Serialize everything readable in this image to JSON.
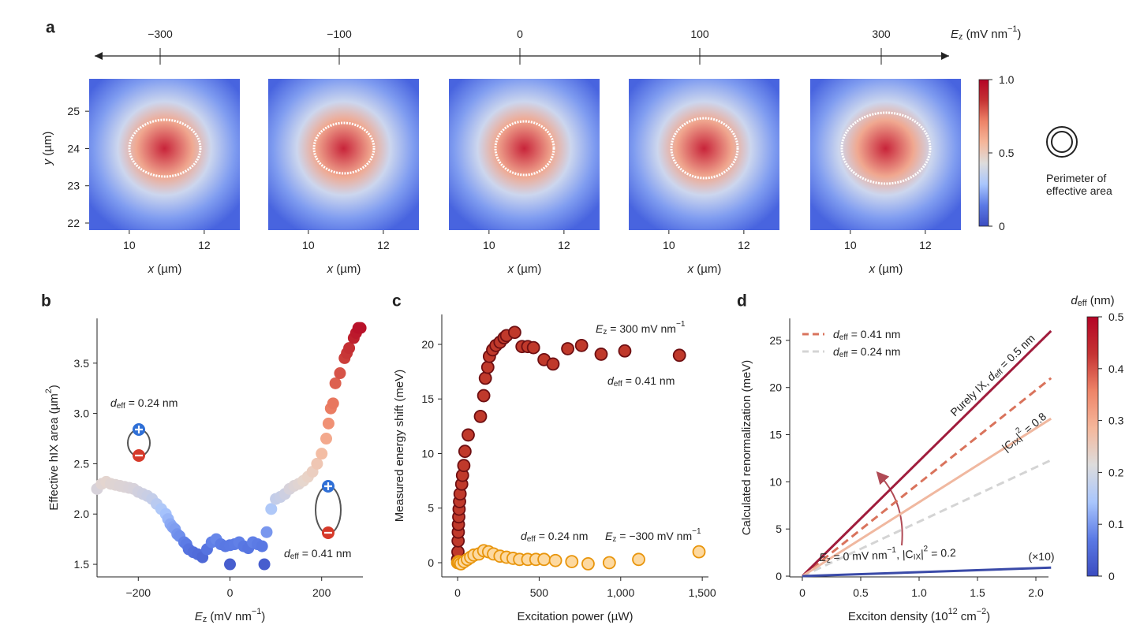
{
  "chart_data": [
    {
      "type": "heatmap",
      "panel": "a",
      "categories": [
        {
          "value": -300,
          "label": "−300"
        },
        {
          "value": -100,
          "label": "−100"
        },
        0,
        100,
        300
      ],
      "category_axis_label": [
        "E",
        "z",
        " (mV nm",
        "−1",
        ")"
      ],
      "xlabel": [
        "x",
        " (µm)"
      ],
      "ylabel": [
        "y",
        " (µm)"
      ],
      "xlim": [
        8.93,
        12.95
      ],
      "ylim": [
        21.81,
        25.87
      ],
      "xticks": [
        10,
        12
      ],
      "yticks": [
        22,
        23,
        24,
        25
      ],
      "colorbar": {
        "lim": [
          0,
          1
        ],
        "ticks": [
          0,
          0.5,
          {
            "value": 1,
            "label": "1.0"
          }
        ],
        "colormap": [
          "#3b4cc0",
          "#5b7ae5",
          "#a9c6fd",
          "#dddcdc",
          "#f5b79b",
          "#ee8468",
          "#c53334",
          "#b40426"
        ]
      },
      "legend_label": [
        "Perimeter of",
        "effective area"
      ]
    },
    {
      "type": "scatter",
      "panel": "b",
      "xlabel": [
        "E",
        "z",
        " (mV nm",
        "−1",
        ")"
      ],
      "ylabel": [
        "Effective hIX area (µm",
        "2",
        ")"
      ],
      "xlim": [
        -290,
        290
      ],
      "ylim": [
        1.375,
        3.945
      ],
      "xticks": [
        {
          "value": -200,
          "label": "−200"
        },
        0,
        200
      ],
      "yticks": [
        1.5,
        {
          "value": 2,
          "label": "2.0"
        },
        2.5,
        {
          "value": 3,
          "label": "3.0"
        },
        3.5
      ],
      "colormap": [
        "#3b4cc0",
        "#5b7ae5",
        "#a9c6fd",
        "#e8d6cc",
        "#f5b79b",
        "#ee8468",
        "#dd6150",
        "#c53334",
        "#b40426"
      ],
      "x": [
        -290,
        -280,
        -270,
        -260,
        -250,
        -240,
        -230,
        -220,
        -210,
        -200,
        -190,
        -180,
        -170,
        -160,
        -150,
        -140,
        -135,
        -130,
        -125,
        -120,
        -115,
        -110,
        -100,
        -95,
        -90,
        -80,
        -70,
        -60,
        -50,
        -40,
        -30,
        -20,
        -10,
        0,
        10,
        20,
        30,
        40,
        50,
        60,
        70,
        80,
        90,
        100,
        110,
        120,
        130,
        140,
        150,
        160,
        170,
        180,
        190,
        200,
        210,
        215,
        220,
        225,
        230,
        240,
        250,
        255,
        260,
        270,
        275,
        280,
        285,
        0,
        75
      ],
      "values": [
        2.25,
        2.3,
        2.32,
        2.3,
        2.29,
        2.28,
        2.27,
        2.26,
        2.25,
        2.22,
        2.2,
        2.18,
        2.15,
        2.1,
        2.05,
        2.0,
        1.95,
        1.9,
        1.87,
        1.85,
        1.8,
        1.78,
        1.72,
        1.7,
        1.65,
        1.62,
        1.6,
        1.57,
        1.65,
        1.72,
        1.75,
        1.7,
        1.68,
        1.69,
        1.7,
        1.72,
        1.68,
        1.66,
        1.72,
        1.7,
        1.68,
        1.82,
        2.05,
        2.15,
        2.17,
        2.2,
        2.25,
        2.28,
        2.3,
        2.33,
        2.37,
        2.42,
        2.5,
        2.6,
        2.75,
        2.9,
        3.05,
        3.1,
        3.3,
        3.4,
        3.55,
        3.6,
        3.65,
        3.75,
        3.8,
        3.85,
        3.85,
        1.5,
        1.5
      ],
      "annotations": [
        [
          "d",
          "eff",
          " = 0.24 nm"
        ],
        [
          "d",
          "eff",
          " = 0.41 nm"
        ]
      ]
    },
    {
      "type": "scatter",
      "panel": "c",
      "xlabel": [
        "Excitation power (µW)"
      ],
      "ylabel": [
        "Measured energy shift (meV)"
      ],
      "xlim": [
        -97,
        1538
      ],
      "ylim": [
        -1.3,
        22.74
      ],
      "xticks": [
        0,
        500,
        {
          "value": 1000,
          "label": "1,000"
        },
        {
          "value": 1500,
          "label": "1,500"
        }
      ],
      "yticks": [
        0,
        5,
        10,
        15,
        20
      ],
      "series": [
        {
          "color": "#c0392b",
          "edge": "#6e0f12",
          "x": [
            0,
            2,
            3,
            4,
            5,
            7,
            9,
            12,
            15,
            25,
            30,
            38,
            45,
            65,
            140,
            160,
            170,
            185,
            195,
            215,
            235,
            260,
            285,
            300,
            350,
            395,
            430,
            465,
            530,
            585,
            675,
            760,
            880,
            1025,
            1360
          ],
          "values": [
            0.3,
            1,
            2,
            2.8,
            3.5,
            4.2,
            4.9,
            5.6,
            6.3,
            7.2,
            8.0,
            8.9,
            10.2,
            11.7,
            13.4,
            15.3,
            16.9,
            17.9,
            18.9,
            19.5,
            19.9,
            20.2,
            20.6,
            20.8,
            21.1,
            19.8,
            19.8,
            19.7,
            18.6,
            18.2,
            19.6,
            19.9,
            19.1,
            19.4,
            19.0
          ]
        },
        {
          "color": "#fdd9a0",
          "edge": "#e8950c",
          "x": [
            0,
            5,
            10,
            20,
            40,
            60,
            80,
            100,
            130,
            160,
            190,
            220,
            260,
            300,
            340,
            380,
            430,
            480,
            530,
            600,
            700,
            800,
            930,
            1110,
            1480
          ],
          "values": [
            0,
            0.1,
            0,
            -0.1,
            0.1,
            0.3,
            0.5,
            0.7,
            0.8,
            1.1,
            1.0,
            0.8,
            0.6,
            0.5,
            0.4,
            0.3,
            0.3,
            0.3,
            0.3,
            0.2,
            0.1,
            -0.1,
            0,
            0.3,
            1.0
          ]
        }
      ],
      "annotations": [
        [
          "E",
          "z",
          " = 300 mV nm",
          "−1"
        ],
        [
          "d",
          "eff",
          " = 0.41 nm"
        ],
        [
          "d",
          "eff",
          " = 0.24 nm"
        ],
        [
          "E",
          "z",
          " = −300 mV nm",
          "−1"
        ]
      ]
    },
    {
      "type": "line",
      "panel": "d",
      "xlabel": [
        "Exciton density (10",
        "12",
        " cm",
        "−2",
        ")"
      ],
      "ylabel": [
        "Calculated renormalization (meV)"
      ],
      "xlim": [
        -0.108,
        2.108
      ],
      "ylim": [
        -0.08,
        27.33
      ],
      "xticks": [
        0,
        0.5,
        {
          "value": 1,
          "label": "1.0"
        },
        1.5,
        {
          "value": 2,
          "label": "2.0"
        }
      ],
      "yticks": [
        0,
        5,
        10,
        15,
        20,
        25
      ],
      "x": [
        0,
        2.13
      ],
      "series": [
        {
          "name": [
            "d",
            "eff",
            " = 0.41 nm"
          ],
          "color": "#d9735c",
          "dash": true,
          "values": [
            0,
            21
          ]
        },
        {
          "name": [
            "d",
            "eff",
            " = 0.24 nm"
          ],
          "color": "#d4d4d4",
          "dash": true,
          "values": [
            0,
            12.3
          ]
        },
        {
          "color": "#a01c3c",
          "values": [
            0,
            26
          ]
        },
        {
          "color": "#f0b8a0",
          "values": [
            0,
            16.7
          ]
        },
        {
          "color": "#3a4aa8",
          "values": [
            0,
            0.9
          ]
        }
      ],
      "annotations": [
        [
          "Purely IX, ",
          "d",
          "eff",
          " = 0.5 nm"
        ],
        [
          "|C",
          "IX",
          "|",
          "2",
          " = 0.8"
        ],
        [
          "E",
          "z",
          " = 0 mV nm",
          "−1",
          ", |C",
          "IX",
          "|",
          "2",
          " = 0.2"
        ],
        [
          "(×10)"
        ]
      ],
      "colorbar": {
        "label": [
          "d",
          "eff",
          " (nm)"
        ],
        "lim": [
          0,
          0.5
        ],
        "ticks": [
          0,
          0.1,
          0.2,
          0.3,
          0.4,
          0.5
        ],
        "colormap": [
          "#3b4cc0",
          "#5b7ae5",
          "#a9c6fd",
          "#dddcdc",
          "#f5b79b",
          "#ee8468",
          "#c53334",
          "#b40426"
        ]
      }
    }
  ]
}
